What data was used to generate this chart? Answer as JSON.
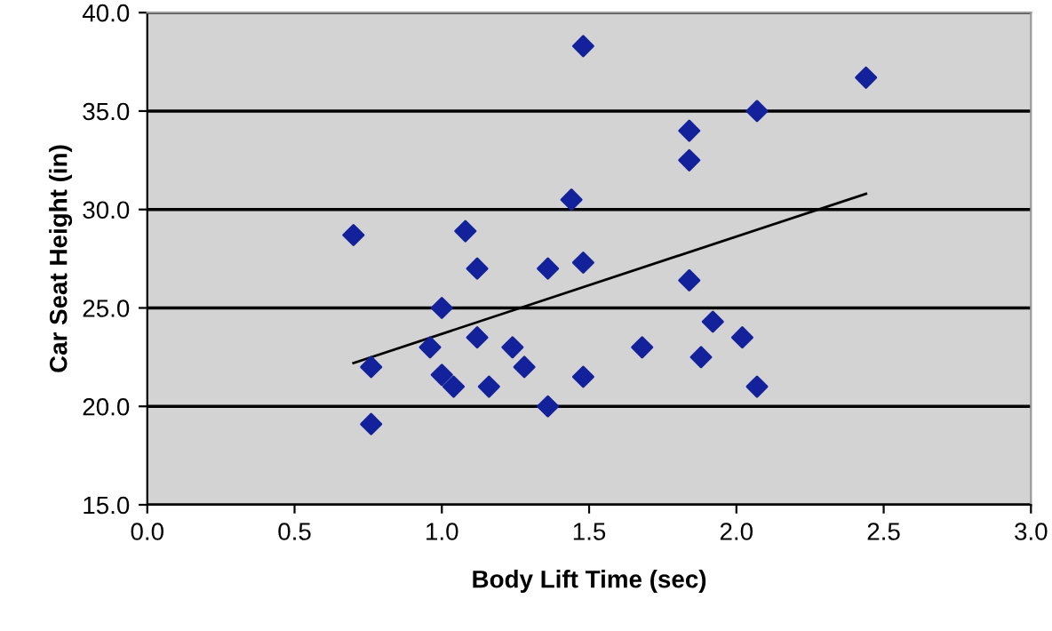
{
  "chart_data": {
    "type": "scatter",
    "xlabel": "Body Lift Time (sec)",
    "ylabel": "Car Seat Height (in)",
    "xlim": [
      0,
      3
    ],
    "xticks": [
      {
        "value": 0,
        "label": "0.0"
      },
      {
        "value": 0.5,
        "label": "0.5"
      },
      {
        "value": 1,
        "label": "1.0"
      },
      {
        "value": 1.5,
        "label": "1.5"
      },
      {
        "value": 2,
        "label": "2.0"
      },
      {
        "value": 2.5,
        "label": "2.5"
      },
      {
        "value": 3,
        "label": "3.0"
      }
    ],
    "ylim": [
      15,
      40
    ],
    "yticks": [
      {
        "value": 15,
        "label": "15.0"
      },
      {
        "value": 20,
        "label": "20.0"
      },
      {
        "value": 25,
        "label": "25.0"
      },
      {
        "value": 30,
        "label": "30.0"
      },
      {
        "value": 35,
        "label": "35.0"
      },
      {
        "value": 40,
        "label": "40.0"
      }
    ],
    "grid": "y",
    "marker": "diamond",
    "series": [
      {
        "color": "#13229b",
        "x": [
          0.7,
          0.76,
          0.76,
          0.96,
          1.0,
          1.0,
          1.04,
          1.08,
          1.12,
          1.12,
          1.16,
          1.24,
          1.28,
          1.36,
          1.36,
          1.44,
          1.48,
          1.48,
          1.48,
          1.68,
          1.84,
          1.84,
          1.84,
          1.88,
          1.92,
          2.02,
          2.07,
          2.07,
          2.44
        ],
        "values": [
          28.7,
          22.0,
          19.1,
          23.0,
          25.0,
          21.6,
          21.0,
          28.9,
          27.0,
          23.5,
          21.0,
          23.0,
          22.0,
          20.0,
          27.0,
          30.5,
          38.3,
          27.3,
          21.5,
          23.0,
          34.0,
          32.5,
          26.4,
          22.5,
          24.3,
          23.5,
          35.0,
          21.0,
          36.7
        ]
      },
      {
        "type": "line",
        "color": "#000000",
        "x": [
          0.7,
          2.44
        ],
        "values": [
          22.2,
          30.8
        ],
        "marker": "none"
      }
    ]
  }
}
